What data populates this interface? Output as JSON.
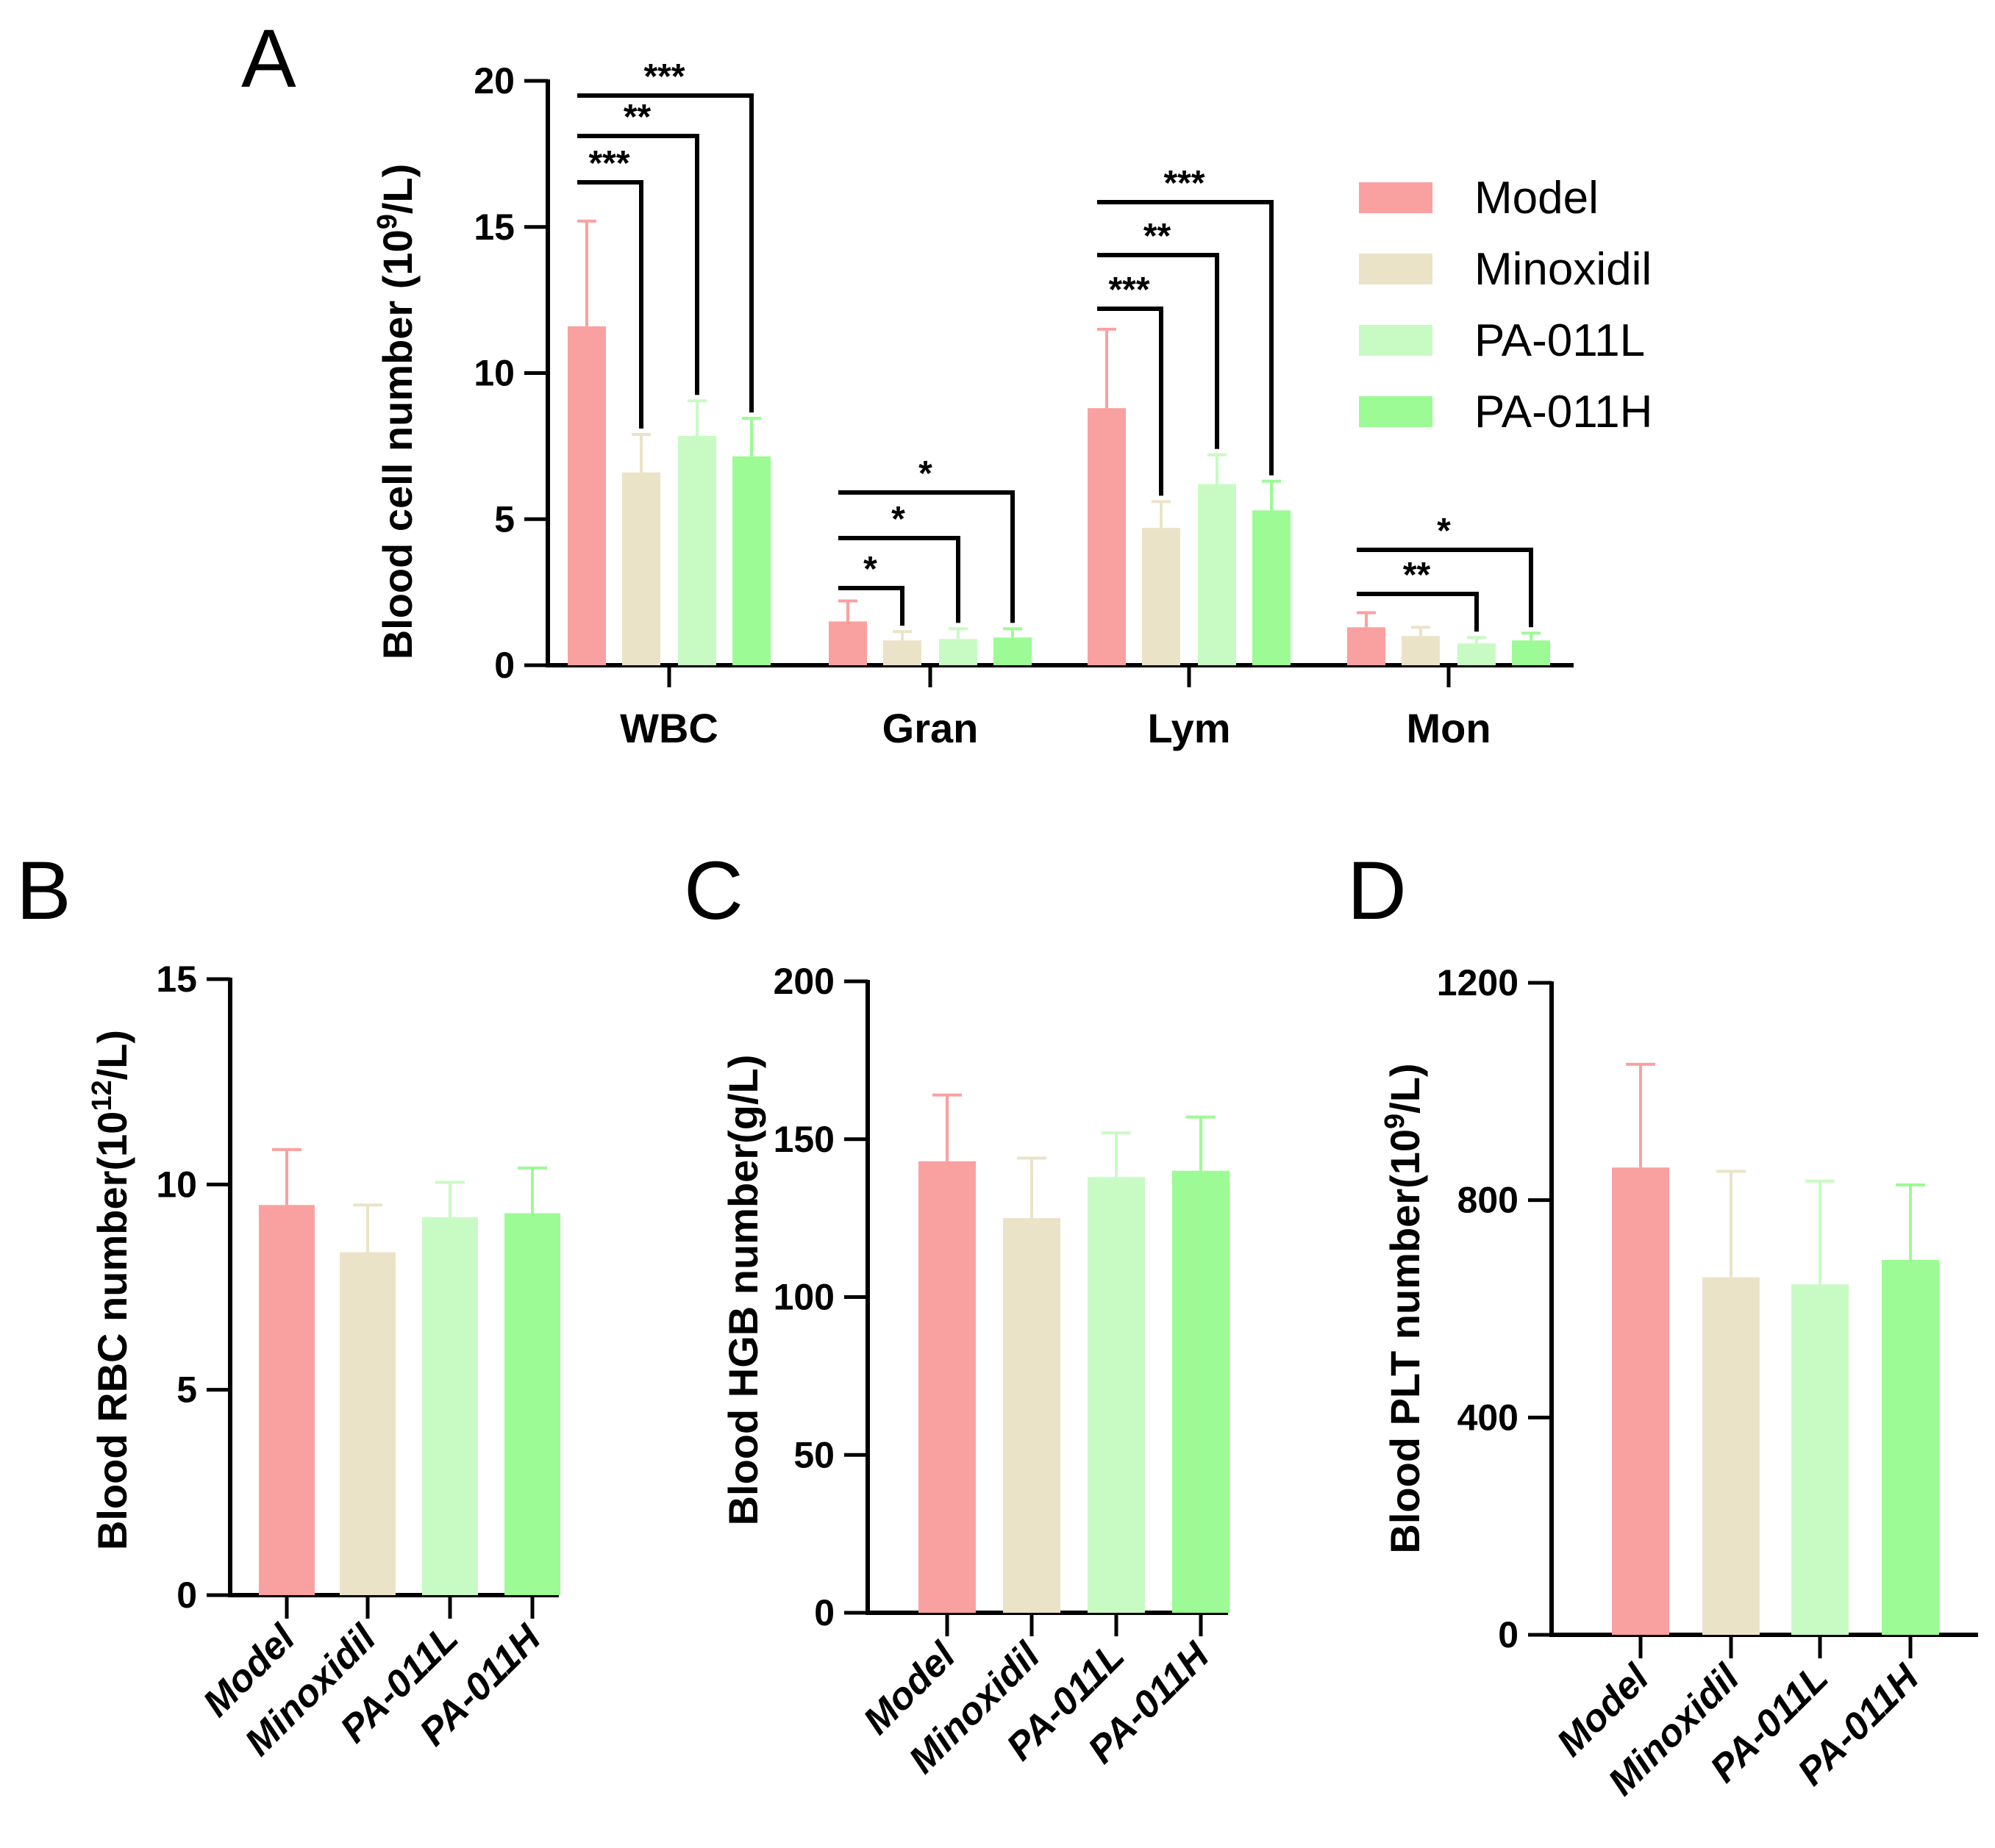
{
  "colors": {
    "Model": "#f9a1a0",
    "Minoxidil": "#ebe3c8",
    "PA-011L": "#c8fbc4",
    "PA-011H": "#9cfb94",
    "axis": "#000000"
  },
  "legend": [
    "Model",
    "Minoxidil",
    "PA-011L",
    "PA-011H"
  ],
  "chart_data": [
    {
      "id": "A",
      "panel_label": "A",
      "type": "bar",
      "ylabel_main": "Blood cell number (10",
      "ylabel_sup": "9",
      "ylabel_end": "/L)",
      "ylim": [
        0,
        20
      ],
      "yticks": [
        "0",
        "5",
        "10",
        "15",
        "20"
      ],
      "categories": [
        "WBC",
        "Gran",
        "Lym",
        "Mon"
      ],
      "series": [
        {
          "name": "Model",
          "values": [
            11.6,
            1.5,
            8.8,
            1.3
          ],
          "errors": [
            3.6,
            0.7,
            2.7,
            0.5
          ]
        },
        {
          "name": "Minoxidil",
          "values": [
            6.6,
            0.85,
            4.7,
            1.0
          ],
          "errors": [
            1.3,
            0.3,
            0.9,
            0.3
          ]
        },
        {
          "name": "PA-011L",
          "values": [
            7.85,
            0.9,
            6.2,
            0.75
          ],
          "errors": [
            1.2,
            0.35,
            1.0,
            0.2
          ]
        },
        {
          "name": "PA-011H",
          "values": [
            7.15,
            0.95,
            5.3,
            0.85
          ],
          "errors": [
            1.3,
            0.3,
            1.0,
            0.25
          ]
        }
      ],
      "significance": [
        {
          "category": "WBC",
          "to": "Minoxidil",
          "label": "***"
        },
        {
          "category": "WBC",
          "to": "PA-011L",
          "label": "**"
        },
        {
          "category": "WBC",
          "to": "PA-011H",
          "label": "***"
        },
        {
          "category": "Gran",
          "to": "Minoxidil",
          "label": "*"
        },
        {
          "category": "Gran",
          "to": "PA-011L",
          "label": "*"
        },
        {
          "category": "Gran",
          "to": "PA-011H",
          "label": "*"
        },
        {
          "category": "Lym",
          "to": "Minoxidil",
          "label": "***"
        },
        {
          "category": "Lym",
          "to": "PA-011L",
          "label": "**"
        },
        {
          "category": "Lym",
          "to": "PA-011H",
          "label": "***"
        },
        {
          "category": "Mon",
          "to": "PA-011L",
          "label": "**"
        },
        {
          "category": "Mon",
          "to": "PA-011H",
          "label": "*"
        }
      ]
    },
    {
      "id": "B",
      "panel_label": "B",
      "type": "bar",
      "ylabel_main": "Blood RBC number(10",
      "ylabel_sup": "12",
      "ylabel_end": "/L)",
      "ylim": [
        0,
        15
      ],
      "yticks": [
        "0",
        "5",
        "10",
        "15"
      ],
      "categories": [
        "Model",
        "Minoxidil",
        "PA-011L",
        "PA-011H"
      ],
      "values": [
        9.5,
        8.35,
        9.2,
        9.3
      ],
      "errors": [
        1.35,
        1.15,
        0.85,
        1.1
      ]
    },
    {
      "id": "C",
      "panel_label": "C",
      "type": "bar",
      "ylabel_main": "Blood HGB number(g/L)",
      "ylabel_sup": "",
      "ylabel_end": "",
      "ylim": [
        0,
        200
      ],
      "yticks": [
        "0",
        "50",
        "100",
        "150",
        "200"
      ],
      "categories": [
        "Model",
        "Minoxidil",
        "PA-011L",
        "PA-011H"
      ],
      "values": [
        143,
        125,
        138,
        140
      ],
      "errors": [
        21,
        19,
        14,
        17
      ]
    },
    {
      "id": "D",
      "panel_label": "D",
      "type": "bar",
      "ylabel_main": "Blood PLT number(10",
      "ylabel_sup": "9",
      "ylabel_end": "/L)",
      "ylim": [
        0,
        1200
      ],
      "yticks": [
        "0",
        "400",
        "800",
        "1200"
      ],
      "categories": [
        "Model",
        "Minoxidil",
        "PA-011L",
        "PA-011H"
      ],
      "values": [
        860,
        658,
        645,
        690
      ],
      "errors": [
        190,
        195,
        190,
        138
      ]
    }
  ]
}
